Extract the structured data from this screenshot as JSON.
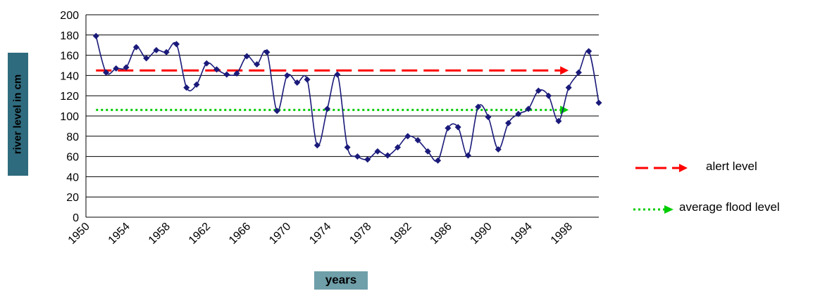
{
  "chart_data": {
    "type": "line",
    "title": "",
    "xlabel": "years",
    "ylabel": "river level in cm",
    "xlim": [
      1950,
      2001
    ],
    "ylim": [
      0,
      200
    ],
    "y_ticks": [
      0,
      20,
      40,
      60,
      80,
      100,
      120,
      140,
      160,
      180,
      200
    ],
    "x_tick_labels": [
      "1950",
      "1954",
      "1958",
      "1962",
      "1966",
      "1970",
      "1974",
      "1978",
      "1982",
      "1986",
      "1990",
      "1994",
      "1998"
    ],
    "grid": "horizontal",
    "legend_position": "right",
    "series": [
      {
        "name": "",
        "color": "#1a1a7a",
        "x": [
          1951,
          1952,
          1953,
          1954,
          1955,
          1956,
          1957,
          1958,
          1959,
          1960,
          1961,
          1962,
          1963,
          1964,
          1965,
          1966,
          1967,
          1968,
          1969,
          1970,
          1971,
          1972,
          1973,
          1974,
          1975,
          1976,
          1977,
          1978,
          1979,
          1980,
          1981,
          1982,
          1983,
          1984,
          1985,
          1986,
          1987,
          1988,
          1989,
          1990,
          1991,
          1992,
          1993,
          1994,
          1995,
          1996,
          1997,
          1998,
          1999,
          2000,
          2001
        ],
        "y": [
          179,
          143,
          147,
          148,
          168,
          157,
          165,
          163,
          171,
          128,
          131,
          152,
          146,
          141,
          142,
          159,
          151,
          163,
          105,
          140,
          133,
          136,
          71,
          107,
          141,
          69,
          60,
          57,
          65,
          61,
          69,
          80,
          76,
          65,
          56,
          88,
          89,
          61,
          109,
          99,
          67,
          93,
          102,
          107,
          125,
          120,
          95,
          128,
          143,
          164,
          113
        ]
      }
    ],
    "reference_lines": [
      {
        "name": "alert level",
        "y": 145,
        "x_start": 1951,
        "x_end": 1998,
        "color": "#ff0000",
        "style": "dashed"
      },
      {
        "name": "average flood level",
        "y": 106,
        "x_start": 1951,
        "x_end": 1998,
        "color": "#00cc00",
        "style": "dotted"
      }
    ]
  }
}
